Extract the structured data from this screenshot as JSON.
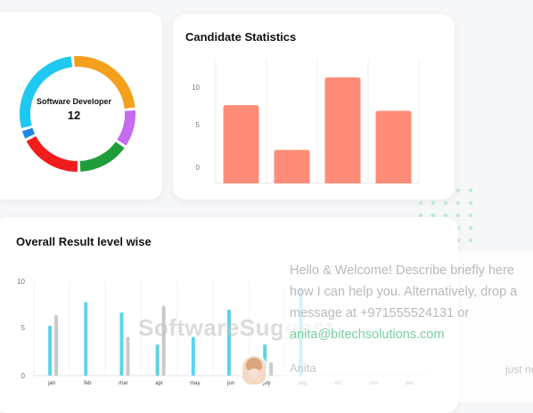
{
  "donut_card": {
    "role": "Software Developer",
    "count": "12",
    "segments": [
      {
        "color": "#f4a01d",
        "value": 25
      },
      {
        "color": "#c56cf0",
        "value": 11
      },
      {
        "color": "#1f9d3a",
        "value": 15
      },
      {
        "color": "#f21c1c",
        "value": 18
      },
      {
        "color": "#1e88e5",
        "value": 3
      },
      {
        "color": "#1ec8f0",
        "value": 28
      }
    ]
  },
  "candidate_statistics": {
    "title": "Candidate Statistics",
    "chart_data": {
      "type": "bar",
      "categories": [
        "",
        "",
        "",
        ""
      ],
      "values": [
        7,
        3,
        9.5,
        6.5
      ],
      "yticks": [
        "10",
        "5",
        "0"
      ],
      "ylim": [
        0,
        11
      ],
      "color": "#ff8c78",
      "grid": true
    }
  },
  "overall_result": {
    "title": "Overall Result level wise",
    "chart_data": {
      "type": "bar",
      "categories": [
        "jan",
        "feb",
        "mar",
        "apr",
        "may",
        "jun",
        "july",
        "aug",
        "oct",
        "nov",
        "dec"
      ],
      "series": [
        {
          "color": "#5cd3ea",
          "values": [
            5.3,
            7.8,
            6.7,
            3.3,
            4.1,
            7.0,
            3.3,
            9.2,
            0,
            0,
            0
          ]
        },
        {
          "color": "#c9c9c9",
          "values": [
            6.4,
            0,
            4.1,
            7.4,
            0,
            0,
            1.4,
            0,
            0,
            0,
            0
          ]
        }
      ],
      "yticks": [
        "10",
        "5",
        "0"
      ],
      "ylim": [
        0,
        10
      ],
      "grid": true
    }
  },
  "chat": {
    "message_line1": "Hello & Welcome! Describe briefly here",
    "message_line2": "how I can help you. Alternatively, drop a",
    "message_line3": "message at +971555524131 or",
    "message_email": "anita@bitechsolutions.com",
    "agent_name": "Anita",
    "time": "just now"
  },
  "watermark": "SoftwareSuggest"
}
